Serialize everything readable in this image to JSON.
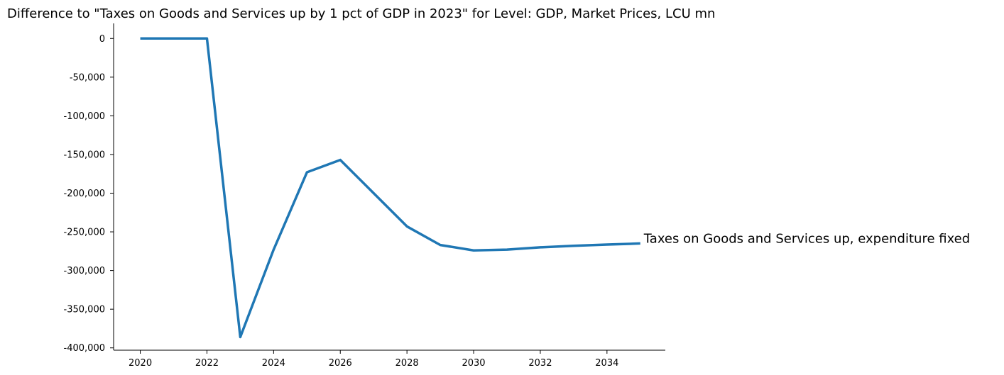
{
  "chart_data": {
    "type": "line",
    "title": "Difference to \"Taxes on Goods and Services up by 1 pct of GDP in 2023\" for Level: GDP, Market Prices, LCU mn",
    "xlabel": "",
    "ylabel": "",
    "xlim": [
      2019.2,
      2035.75
    ],
    "ylim": [
      -403000,
      19500
    ],
    "x_ticks": [
      2020,
      2022,
      2024,
      2026,
      2028,
      2030,
      2032,
      2034
    ],
    "y_ticks": [
      0,
      -50000,
      -100000,
      -150000,
      -200000,
      -250000,
      -300000,
      -350000,
      -400000
    ],
    "y_tick_labels": [
      "0",
      "-50,000",
      "-100,000",
      "-150,000",
      "-200,000",
      "-250,000",
      "-300,000",
      "-350,000",
      "-400,000"
    ],
    "grid": false,
    "line_color": "#1f77b4",
    "x": [
      2020,
      2021,
      2022,
      2023,
      2024,
      2025,
      2026,
      2027,
      2028,
      2029,
      2030,
      2031,
      2032,
      2033,
      2034,
      2035
    ],
    "series": [
      {
        "name": "Taxes on Goods and Services up, expenditure fixed",
        "values": [
          0,
          0,
          0,
          -386000,
          -273000,
          -173000,
          -157000,
          -200000,
          -243000,
          -267000,
          -274000,
          -273000,
          -270000,
          -268000,
          -266500,
          -265000
        ]
      }
    ]
  }
}
